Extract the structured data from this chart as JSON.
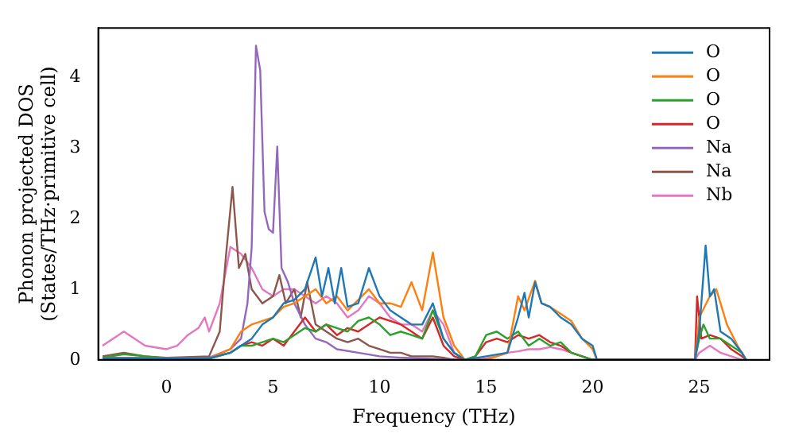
{
  "chart_data": {
    "type": "line",
    "xlabel": "Frequency (THz)",
    "ylabel": "Phonon projected DOS\n(States/THz·primitive cell)",
    "xlim": [
      -3.2,
      28.3
    ],
    "xticks": [
      0,
      5,
      10,
      15,
      20,
      25
    ],
    "ylim": [
      0,
      4.7
    ],
    "yticks": [
      0,
      1,
      2,
      3,
      4
    ],
    "grid": false,
    "legend": "top right",
    "marker": "none",
    "line_style": "solid",
    "series": [
      {
        "name": "O",
        "color": "#1f77b4",
        "x": [
          -3,
          2,
          3,
          3.5,
          4,
          4.5,
          5,
          5.5,
          6,
          6.5,
          7,
          7.3,
          7.6,
          7.9,
          8.2,
          8.5,
          9,
          9.5,
          10,
          10.5,
          11,
          11.5,
          12,
          12.5,
          13,
          13.5,
          14,
          15,
          16,
          16.5,
          16.8,
          17,
          17.3,
          17.6,
          18,
          18.5,
          19,
          19.5,
          20,
          20.2,
          24.8,
          25,
          25.3,
          25.5,
          25.7,
          26,
          26.5,
          27,
          27.2
        ],
        "values": [
          0.02,
          0.02,
          0.1,
          0.2,
          0.3,
          0.5,
          0.6,
          0.8,
          0.85,
          1.0,
          1.45,
          0.9,
          1.3,
          0.8,
          1.3,
          0.75,
          0.8,
          1.3,
          0.9,
          0.7,
          0.6,
          0.5,
          0.5,
          0.8,
          0.3,
          0.1,
          0,
          0.05,
          0.1,
          0.6,
          0.95,
          0.6,
          1.1,
          0.8,
          0.75,
          0.6,
          0.5,
          0.3,
          0.2,
          0,
          0,
          0.4,
          1.62,
          0.9,
          1.0,
          0.4,
          0.3,
          0.1,
          0
        ]
      },
      {
        "name": "O",
        "color": "#ff7f0e",
        "x": [
          -3,
          2,
          3,
          3.5,
          4,
          4.5,
          5,
          5.5,
          6,
          6.5,
          7,
          7.5,
          8,
          8.5,
          9,
          9.5,
          10,
          10.5,
          11,
          11.5,
          12,
          12.5,
          13,
          13.5,
          14,
          15,
          16,
          16.5,
          16.8,
          17.3,
          17.6,
          18,
          18.5,
          19,
          19.5,
          20,
          20.2,
          24.8,
          25,
          25.5,
          25.8,
          26.3,
          26.8,
          27.2
        ],
        "values": [
          0.02,
          0.02,
          0.15,
          0.4,
          0.5,
          0.55,
          0.6,
          0.75,
          0.8,
          0.9,
          1.0,
          0.8,
          0.9,
          0.7,
          0.85,
          1.0,
          0.8,
          0.8,
          0.75,
          1.1,
          0.7,
          1.52,
          0.6,
          0.2,
          0,
          0,
          0.1,
          0.9,
          0.7,
          1.12,
          0.8,
          0.75,
          0.65,
          0.55,
          0.3,
          0.15,
          0,
          0,
          0.6,
          0.9,
          1.0,
          0.5,
          0.2,
          0
        ]
      },
      {
        "name": "O",
        "color": "#2ca02c",
        "x": [
          -3,
          -2,
          -1,
          0,
          2,
          3,
          3.5,
          4,
          4.5,
          5,
          5.5,
          6,
          6.5,
          7,
          7.5,
          8,
          8.5,
          9,
          9.5,
          10,
          10.5,
          11,
          11.5,
          12,
          12.5,
          13,
          13.5,
          14,
          14.5,
          15,
          15.5,
          16,
          16.5,
          17,
          17.5,
          18,
          18.5,
          19,
          19.5,
          20,
          24.8,
          25,
          25.2,
          25.5,
          26,
          26.5,
          27,
          27.2
        ],
        "values": [
          0.03,
          0.08,
          0.05,
          0.02,
          0.02,
          0.1,
          0.2,
          0.2,
          0.25,
          0.3,
          0.25,
          0.35,
          0.45,
          0.4,
          0.5,
          0.45,
          0.4,
          0.55,
          0.6,
          0.5,
          0.35,
          0.4,
          0.35,
          0.3,
          0.7,
          0.3,
          0.1,
          0,
          0.05,
          0.35,
          0.4,
          0.3,
          0.4,
          0.2,
          0.3,
          0.2,
          0.25,
          0.1,
          0.05,
          0,
          0,
          0.3,
          0.5,
          0.3,
          0.3,
          0.2,
          0.1,
          0
        ]
      },
      {
        "name": "O",
        "color": "#d62728",
        "x": [
          -3,
          2,
          3,
          3.5,
          4,
          4.5,
          5,
          5.5,
          6,
          6.5,
          7,
          7.5,
          8,
          8.5,
          9,
          9.5,
          10,
          10.5,
          11,
          11.5,
          12,
          12.5,
          13,
          13.5,
          14,
          14.5,
          15,
          15.5,
          16,
          16.5,
          17,
          17.5,
          18,
          18.5,
          19,
          19.5,
          20,
          24.8,
          24.9,
          25.1,
          25.5,
          26,
          26.5,
          27,
          27.2
        ],
        "values": [
          0.02,
          0.02,
          0.1,
          0.2,
          0.25,
          0.2,
          0.3,
          0.2,
          0.4,
          0.6,
          0.4,
          0.5,
          0.35,
          0.45,
          0.4,
          0.5,
          0.6,
          0.55,
          0.5,
          0.4,
          0.3,
          0.6,
          0.2,
          0.05,
          0,
          0.05,
          0.25,
          0.3,
          0.25,
          0.35,
          0.3,
          0.35,
          0.25,
          0.2,
          0.1,
          0.05,
          0,
          0,
          0.9,
          0.3,
          0.35,
          0.3,
          0.15,
          0.05,
          0
        ]
      },
      {
        "name": "Na",
        "color": "#9467bd",
        "x": [
          -3,
          2,
          3,
          3.5,
          3.8,
          4,
          4.2,
          4.4,
          4.6,
          4.8,
          5,
          5.2,
          5.4,
          5.7,
          6,
          6.5,
          7,
          7.5,
          8,
          9,
          10,
          11,
          12,
          13,
          14
        ],
        "values": [
          0.03,
          0.03,
          0.15,
          0.3,
          0.8,
          1.6,
          4.45,
          4.1,
          2.1,
          1.85,
          1.8,
          3.02,
          1.3,
          1.1,
          0.8,
          0.5,
          0.3,
          0.25,
          0.15,
          0.1,
          0.05,
          0.03,
          0.02,
          0.01,
          0
        ]
      },
      {
        "name": "Na",
        "color": "#8c564b",
        "x": [
          -3,
          -2,
          -1,
          0,
          2,
          2.5,
          2.8,
          3.1,
          3.4,
          3.7,
          4,
          4.5,
          5,
          5.3,
          5.6,
          6,
          6.3,
          6.6,
          7,
          7.5,
          8,
          8.5,
          9,
          9.5,
          10,
          10.5,
          11,
          11.5,
          12,
          12.5,
          13,
          13.5
        ],
        "values": [
          0.05,
          0.1,
          0.05,
          0.03,
          0.05,
          0.4,
          1.5,
          2.45,
          1.3,
          1.5,
          1.0,
          0.8,
          0.9,
          1.2,
          0.8,
          1.0,
          0.6,
          1.1,
          0.5,
          0.4,
          0.3,
          0.25,
          0.3,
          0.2,
          0.15,
          0.1,
          0.1,
          0.05,
          0.05,
          0.05,
          0.03,
          0
        ]
      },
      {
        "name": "Nb",
        "color": "#e377c2",
        "x": [
          -3,
          -2,
          -1,
          0,
          0.5,
          1,
          1.5,
          1.8,
          2,
          2.5,
          3,
          3.5,
          4,
          4.5,
          5,
          5.5,
          6,
          6.5,
          7,
          7.5,
          8,
          8.5,
          9,
          9.5,
          10,
          10.5,
          11,
          11.5,
          12,
          12.5,
          13,
          13.5,
          14,
          14.5,
          15,
          15.5,
          16,
          16.5,
          17,
          17.5,
          18,
          18.5,
          19,
          19.5,
          20,
          24.8,
          25,
          25.5,
          26,
          26.5,
          27
        ],
        "values": [
          0.2,
          0.4,
          0.2,
          0.15,
          0.2,
          0.35,
          0.45,
          0.6,
          0.4,
          0.8,
          1.6,
          1.5,
          1.3,
          1.0,
          0.9,
          1.0,
          1.0,
          0.9,
          0.8,
          0.9,
          0.8,
          0.6,
          0.7,
          0.9,
          0.8,
          0.6,
          0.5,
          0.5,
          0.4,
          0.7,
          0.5,
          0.1,
          0,
          0,
          0.02,
          0.05,
          0.1,
          0.12,
          0.15,
          0.15,
          0.18,
          0.15,
          0.1,
          0.05,
          0,
          0,
          0.1,
          0.2,
          0.1,
          0.05,
          0
        ]
      }
    ]
  }
}
